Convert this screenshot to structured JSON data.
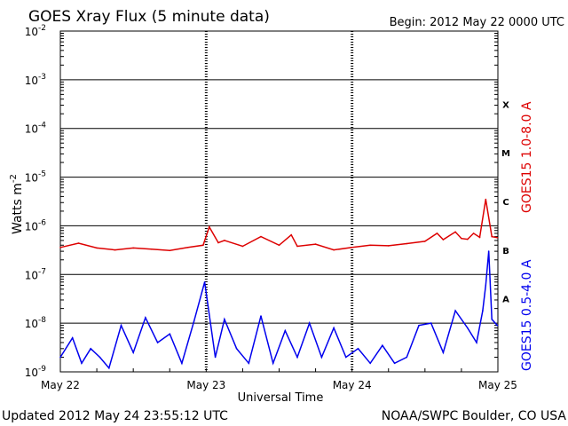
{
  "header": {
    "title": "GOES Xray Flux (5 minute data)",
    "begin": "Begin:  2012 May 22 0000 UTC"
  },
  "footer": {
    "updated": "Updated 2012 May 24 23:55:12 UTC",
    "source": "NOAA/SWPC Boulder, CO USA"
  },
  "chart_data": {
    "type": "line",
    "title": "GOES Xray Flux (5 minute data)",
    "xlabel": "Universal Time",
    "ylabel": "Watts m",
    "ylabel_sup": "-2",
    "yscale": "log",
    "ylim": [
      1e-09,
      0.01
    ],
    "xlim": [
      "2012-05-22",
      "2012-05-25"
    ],
    "x_ticks": [
      "May 22",
      "May 23",
      "May 24",
      "May 25"
    ],
    "y_ticks": [
      {
        "base": "10",
        "exp": "-2"
      },
      {
        "base": "10",
        "exp": "-3"
      },
      {
        "base": "10",
        "exp": "-4"
      },
      {
        "base": "10",
        "exp": "-5"
      },
      {
        "base": "10",
        "exp": "-6"
      },
      {
        "base": "10",
        "exp": "-7"
      },
      {
        "base": "10",
        "exp": "-8"
      },
      {
        "base": "10",
        "exp": "-9"
      }
    ],
    "flare_classes": [
      "X",
      "M",
      "C",
      "B",
      "A"
    ],
    "grid": true,
    "series": [
      {
        "name": "GOES15 1.0-8.0 A",
        "color": "#dd0000",
        "x": [
          "2012-05-22 00:00",
          "2012-05-22 03:00",
          "2012-05-22 06:00",
          "2012-05-22 09:00",
          "2012-05-22 12:00",
          "2012-05-22 15:00",
          "2012-05-22 18:00",
          "2012-05-22 21:00",
          "2012-05-22 23:30",
          "2012-05-23 00:30",
          "2012-05-23 02:00",
          "2012-05-23 03:00",
          "2012-05-23 06:00",
          "2012-05-23 09:00",
          "2012-05-23 12:00",
          "2012-05-23 14:00",
          "2012-05-23 15:00",
          "2012-05-23 18:00",
          "2012-05-23 21:00",
          "2012-05-24 00:00",
          "2012-05-24 03:00",
          "2012-05-24 06:00",
          "2012-05-24 09:00",
          "2012-05-24 12:00",
          "2012-05-24 14:00",
          "2012-05-24 15:00",
          "2012-05-24 17:00",
          "2012-05-24 18:00",
          "2012-05-24 19:00",
          "2012-05-24 20:00",
          "2012-05-24 21:00",
          "2012-05-24 22:00",
          "2012-05-24 23:00",
          "2012-05-24 23:55"
        ],
        "values": [
          3.6e-07,
          4.4e-07,
          3.5e-07,
          3.2e-07,
          3.5e-07,
          3.3e-07,
          3.1e-07,
          3.6e-07,
          4e-07,
          9.5e-07,
          4.5e-07,
          5e-07,
          3.8e-07,
          6e-07,
          4e-07,
          6.5e-07,
          3.8e-07,
          4.2e-07,
          3.2e-07,
          3.6e-07,
          4e-07,
          3.9e-07,
          4.3e-07,
          4.8e-07,
          7e-07,
          5.2e-07,
          7.5e-07,
          5.5e-07,
          5.3e-07,
          7e-07,
          5.8e-07,
          3.5e-06,
          6e-07,
          5.7e-07
        ]
      },
      {
        "name": "GOES15 0.5-4.0 A",
        "color": "#0000ee",
        "x": [
          "2012-05-22 00:00",
          "2012-05-22 02:00",
          "2012-05-22 03:30",
          "2012-05-22 05:00",
          "2012-05-22 06:30",
          "2012-05-22 08:00",
          "2012-05-22 10:00",
          "2012-05-22 12:00",
          "2012-05-22 14:00",
          "2012-05-22 16:00",
          "2012-05-22 18:00",
          "2012-05-22 20:00",
          "2012-05-22 22:00",
          "2012-05-22 23:45",
          "2012-05-23 01:30",
          "2012-05-23 03:00",
          "2012-05-23 05:00",
          "2012-05-23 07:00",
          "2012-05-23 09:00",
          "2012-05-23 11:00",
          "2012-05-23 13:00",
          "2012-05-23 15:00",
          "2012-05-23 17:00",
          "2012-05-23 19:00",
          "2012-05-23 21:00",
          "2012-05-23 23:00",
          "2012-05-24 01:00",
          "2012-05-24 03:00",
          "2012-05-24 05:00",
          "2012-05-24 07:00",
          "2012-05-24 09:00",
          "2012-05-24 11:00",
          "2012-05-24 13:00",
          "2012-05-24 15:00",
          "2012-05-24 17:00",
          "2012-05-24 19:00",
          "2012-05-24 20:30",
          "2012-05-24 21:30",
          "2012-05-24 22:00",
          "2012-05-24 22:30",
          "2012-05-24 23:00",
          "2012-05-24 23:55"
        ],
        "values": [
          2e-09,
          5e-09,
          1.5e-09,
          3e-09,
          2e-09,
          1.2e-09,
          9e-09,
          2.5e-09,
          1.3e-08,
          4e-09,
          6e-09,
          1.5e-09,
          1.1e-08,
          7e-08,
          2e-09,
          1.2e-08,
          3e-09,
          1.5e-09,
          1.4e-08,
          1.5e-09,
          7e-09,
          2e-09,
          1e-08,
          2e-09,
          8e-09,
          2e-09,
          3e-09,
          1.5e-09,
          3.5e-09,
          1.5e-09,
          2e-09,
          9e-09,
          1e-08,
          2.5e-09,
          1.8e-08,
          8e-09,
          4e-09,
          1.8e-08,
          6e-08,
          3e-07,
          1.2e-08,
          9e-09
        ]
      }
    ]
  }
}
